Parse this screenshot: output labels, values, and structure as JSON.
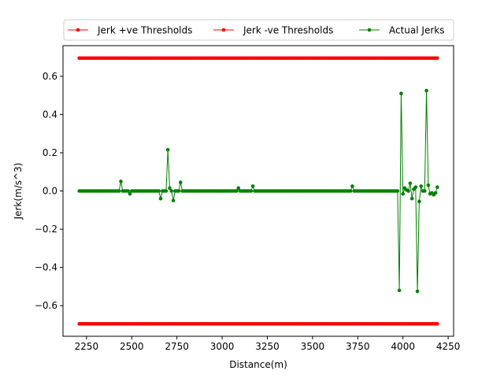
{
  "chart_data": {
    "type": "line",
    "xlabel": "Distance(m)",
    "ylabel": "Jerk(m/s^3)",
    "xlim": [
      2120,
      4280
    ],
    "ylim": [
      -0.76,
      0.76
    ],
    "xticks": [
      2250,
      2500,
      2750,
      3000,
      3250,
      3500,
      3750,
      4000,
      4250
    ],
    "yticks": [
      -0.6,
      -0.4,
      -0.2,
      0.0,
      0.2,
      0.4,
      0.6
    ],
    "xtick_labels": [
      "2250",
      "2500",
      "2750",
      "3000",
      "3250",
      "3500",
      "3750",
      "4000",
      "4250"
    ],
    "ytick_labels": [
      "−0.6",
      "−0.4",
      "−0.2",
      "0.0",
      "0.2",
      "0.4",
      "0.6"
    ],
    "grid": false,
    "legend_position": "top-center",
    "x_range_sampled": [
      2210,
      4190
    ],
    "sample_step": 10,
    "series": [
      {
        "name": "Jerk +ve Thresholds",
        "color": "#ff0000",
        "marker": "dot",
        "constant": 0.695,
        "values_note_x": [
          2210,
          4190
        ]
      },
      {
        "name": "Jerk -ve Thresholds",
        "color": "#ff0000",
        "marker": "dot",
        "constant": -0.695,
        "values_note_x": [
          2210,
          4190
        ]
      },
      {
        "name": "Actual Jerks",
        "color": "#008000",
        "marker": "dot",
        "baseline": 0.0,
        "nonzero_points": [
          [
            2440,
            0.05
          ],
          [
            2490,
            -0.015
          ],
          [
            2660,
            -0.04
          ],
          [
            2700,
            0.215
          ],
          [
            2710,
            0.015
          ],
          [
            2730,
            -0.05
          ],
          [
            2770,
            0.045
          ],
          [
            3090,
            0.015
          ],
          [
            3170,
            0.025
          ],
          [
            3720,
            0.025
          ],
          [
            3980,
            -0.52
          ],
          [
            3990,
            0.51
          ],
          [
            4000,
            -0.015
          ],
          [
            4010,
            0.015
          ],
          [
            4020,
            0.005
          ],
          [
            4040,
            0.04
          ],
          [
            4050,
            -0.04
          ],
          [
            4060,
            0.01
          ],
          [
            4070,
            0.02
          ],
          [
            4080,
            -0.525
          ],
          [
            4090,
            -0.055
          ],
          [
            4100,
            0.025
          ],
          [
            4110,
            0.0
          ],
          [
            4120,
            0.0
          ],
          [
            4130,
            0.525
          ],
          [
            4140,
            0.03
          ],
          [
            4150,
            -0.015
          ],
          [
            4160,
            -0.01
          ],
          [
            4170,
            -0.02
          ],
          [
            4180,
            -0.01
          ],
          [
            4190,
            0.02
          ]
        ]
      }
    ]
  }
}
